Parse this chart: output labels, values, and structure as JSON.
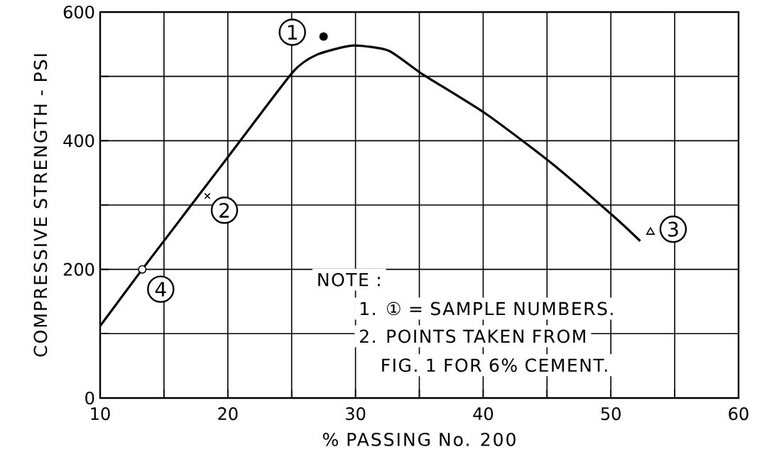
{
  "chart_data": {
    "type": "line",
    "xlabel": "% PASSING No. 200",
    "ylabel": "COMPRESSIVE STRENGTH - PSI",
    "xlim": [
      10,
      60
    ],
    "ylim": [
      0,
      600
    ],
    "xticks": [
      10,
      20,
      30,
      40,
      50,
      60
    ],
    "yticks": [
      0,
      200,
      400,
      600
    ],
    "grid": true,
    "series": [
      {
        "color": "#000000",
        "marker": "none",
        "line_style": "solid",
        "x": [
          10,
          13.3,
          20.1,
          25.1,
          27,
          29.8,
          32.6,
          35.2,
          40.2,
          45.3,
          50.3,
          52.3
        ],
        "values": [
          112,
          200,
          377,
          507,
          534,
          548,
          540,
          504,
          442,
          366,
          281,
          244
        ]
      },
      {
        "type": "scatter",
        "color": "#000000",
        "marker": "circle",
        "x": [
          27.5
        ],
        "values": [
          562
        ]
      },
      {
        "type": "scatter",
        "color": "#000000",
        "marker": "cross",
        "x": [
          18.4
        ],
        "values": [
          314
        ]
      },
      {
        "type": "scatter",
        "color": "#000000",
        "marker": "triangle",
        "x": [
          53.1
        ],
        "values": [
          258
        ]
      },
      {
        "type": "scatter",
        "color": "#ffffff",
        "marker": "circle",
        "x": [
          13.3
        ],
        "values": [
          200
        ]
      }
    ],
    "annotations": [
      {
        "text": "1",
        "x": 27.5,
        "y": 562
      },
      {
        "text": "2",
        "x": 18.4,
        "y": 314
      },
      {
        "text": "3",
        "x": 53.1,
        "y": 258
      },
      {
        "text": "4",
        "x": 13.3,
        "y": 200
      },
      "NOTE :",
      "1. ① = SAMPLE NUMBERS.",
      "2. POINTS TAKEN FROM",
      "FIG. 1 FOR 6% CEMENT."
    ]
  }
}
